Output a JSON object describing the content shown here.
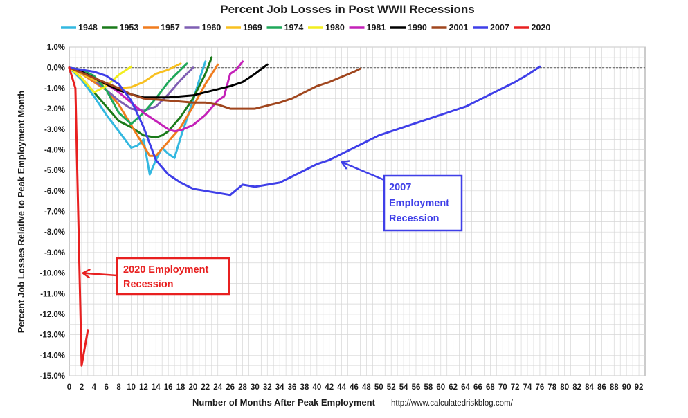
{
  "chart_data": {
    "type": "line",
    "title": "Percent Job Losses in Post WWII Recessions",
    "xlabel": "Number of Months After Peak Employment",
    "ylabel": "Percent Job Losses Relative to Peak Employment Month",
    "xlim": [
      0,
      93
    ],
    "ylim": [
      -15,
      1
    ],
    "grid": true,
    "legend_position": "top",
    "x_ticks": [
      "0",
      "2",
      "4",
      "6",
      "8",
      "10",
      "12",
      "14",
      "16",
      "18",
      "20",
      "22",
      "24",
      "26",
      "28",
      "30",
      "32",
      "34",
      "36",
      "38",
      "40",
      "42",
      "44",
      "46",
      "48",
      "50",
      "52",
      "54",
      "56",
      "58",
      "60",
      "62",
      "64",
      "66",
      "68",
      "70",
      "72",
      "74",
      "76",
      "78",
      "80",
      "82",
      "84",
      "86",
      "88",
      "90",
      "92"
    ],
    "y_ticks": [
      "1.0%",
      "0.0%",
      "-1.0%",
      "-2.0%",
      "-3.0%",
      "-4.0%",
      "-5.0%",
      "-6.0%",
      "-7.0%",
      "-8.0%",
      "-9.0%",
      "-10.0%",
      "-11.0%",
      "-12.0%",
      "-13.0%",
      "-14.0%",
      "-15.0%"
    ],
    "source": "http://www.calculatedriskblog.com/",
    "series": [
      {
        "name": "1948",
        "color": "#33b8e0",
        "x": [
          0,
          2,
          4,
          6,
          8,
          10,
          11,
          12,
          13,
          14,
          15,
          16,
          17,
          18,
          19,
          20,
          21,
          22
        ],
        "y": [
          0,
          -0.6,
          -1.4,
          -2.3,
          -3.1,
          -3.9,
          -3.8,
          -3.5,
          -5.2,
          -4.5,
          -3.9,
          -4.2,
          -4.4,
          -3.4,
          -2.5,
          -1.6,
          -0.6,
          0.3
        ]
      },
      {
        "name": "1953",
        "color": "#1a7a1a",
        "x": [
          0,
          2,
          4,
          6,
          8,
          10,
          12,
          14,
          15,
          16,
          18,
          20,
          22,
          23
        ],
        "y": [
          0,
          -0.5,
          -1.2,
          -1.9,
          -2.6,
          -2.9,
          -3.3,
          -3.4,
          -3.3,
          -3.1,
          -2.4,
          -1.5,
          -0.3,
          0.5
        ]
      },
      {
        "name": "1957",
        "color": "#f07c1e",
        "x": [
          0,
          2,
          4,
          6,
          8,
          10,
          12,
          13,
          14,
          16,
          18,
          20,
          22,
          24
        ],
        "y": [
          0,
          -0.3,
          -0.7,
          -1.1,
          -1.8,
          -2.8,
          -3.8,
          -4.3,
          -4.3,
          -3.6,
          -2.9,
          -1.9,
          -0.8,
          0.15
        ]
      },
      {
        "name": "1960",
        "color": "#7f5fb3",
        "x": [
          0,
          2,
          4,
          6,
          8,
          10,
          12,
          14,
          16,
          18,
          20
        ],
        "y": [
          0,
          -0.3,
          -0.6,
          -1.1,
          -1.6,
          -2.0,
          -2.1,
          -1.9,
          -1.3,
          -0.6,
          0
        ]
      },
      {
        "name": "1969",
        "color": "#f8c020",
        "x": [
          0,
          2,
          4,
          6,
          8,
          10,
          12,
          14,
          16,
          18
        ],
        "y": [
          0,
          -0.3,
          -0.6,
          -0.85,
          -1.0,
          -0.95,
          -0.7,
          -0.3,
          -0.1,
          0.2
        ]
      },
      {
        "name": "1974",
        "color": "#1fa85a",
        "x": [
          0,
          2,
          4,
          6,
          8,
          10,
          12,
          14,
          16,
          18,
          19
        ],
        "y": [
          0,
          -0.1,
          -0.4,
          -1.1,
          -2.2,
          -2.75,
          -2.2,
          -1.5,
          -0.7,
          -0.1,
          0.2
        ]
      },
      {
        "name": "1980",
        "color": "#f2ee1e",
        "x": [
          0,
          2,
          4,
          6,
          8,
          10
        ],
        "y": [
          0,
          -0.5,
          -1.2,
          -0.9,
          -0.35,
          0.05
        ]
      },
      {
        "name": "1981",
        "color": "#c421b8",
        "x": [
          0,
          2,
          4,
          6,
          8,
          10,
          12,
          14,
          16,
          17,
          18,
          20,
          22,
          24,
          25,
          26,
          27,
          28
        ],
        "y": [
          0,
          -0.2,
          -0.5,
          -0.8,
          -1.2,
          -1.7,
          -2.2,
          -2.6,
          -3.0,
          -3.1,
          -3.05,
          -2.8,
          -2.3,
          -1.6,
          -1.4,
          -0.3,
          -0.1,
          0.3
        ]
      },
      {
        "name": "1990",
        "color": "#000000",
        "x": [
          0,
          2,
          4,
          6,
          8,
          10,
          12,
          14,
          16,
          18,
          20,
          22,
          24,
          26,
          28,
          30,
          32
        ],
        "y": [
          0,
          -0.2,
          -0.5,
          -0.8,
          -1.1,
          -1.3,
          -1.45,
          -1.45,
          -1.45,
          -1.4,
          -1.35,
          -1.2,
          -1.05,
          -0.9,
          -0.7,
          -0.3,
          0.15
        ]
      },
      {
        "name": "2001",
        "color": "#a0461e",
        "x": [
          0,
          4,
          8,
          10,
          12,
          14,
          16,
          18,
          20,
          22,
          24,
          26,
          28,
          30,
          32,
          34,
          36,
          38,
          40,
          42,
          44,
          46,
          47
        ],
        "y": [
          0,
          -0.5,
          -1.0,
          -1.3,
          -1.5,
          -1.55,
          -1.6,
          -1.65,
          -1.7,
          -1.7,
          -1.8,
          -2.0,
          -2.0,
          -2.0,
          -1.85,
          -1.7,
          -1.5,
          -1.2,
          -0.9,
          -0.7,
          -0.45,
          -0.2,
          -0.05
        ]
      },
      {
        "name": "2007",
        "color": "#3f3fe8",
        "x": [
          0,
          2,
          4,
          6,
          8,
          10,
          12,
          14,
          16,
          18,
          20,
          22,
          24,
          26,
          28,
          30,
          32,
          34,
          36,
          38,
          40,
          42,
          44,
          46,
          48,
          50,
          52,
          54,
          56,
          58,
          60,
          62,
          64,
          66,
          68,
          70,
          72,
          74,
          76
        ],
        "y": [
          0,
          -0.1,
          -0.2,
          -0.4,
          -0.8,
          -1.6,
          -2.9,
          -4.5,
          -5.2,
          -5.6,
          -5.9,
          -6.0,
          -6.1,
          -6.2,
          -5.7,
          -5.8,
          -5.7,
          -5.6,
          -5.3,
          -5.0,
          -4.7,
          -4.5,
          -4.2,
          -3.9,
          -3.6,
          -3.3,
          -3.1,
          -2.9,
          -2.7,
          -2.5,
          -2.3,
          -2.1,
          -1.9,
          -1.6,
          -1.3,
          -1.0,
          -0.7,
          -0.35,
          0.05
        ]
      },
      {
        "name": "2020",
        "color": "#e82020",
        "x": [
          0,
          1,
          2,
          3
        ],
        "y": [
          0,
          -1.0,
          -14.5,
          -12.8
        ]
      }
    ],
    "annotations": [
      {
        "text": [
          "2020 Employment",
          "Recession"
        ],
        "color": "#e82020",
        "arrow_to": [
          2.2,
          -10.0
        ]
      },
      {
        "text": [
          "2007",
          "Employment",
          "Recession"
        ],
        "color": "#3f3fe8",
        "arrow_to": [
          44,
          -4.6
        ]
      }
    ]
  }
}
